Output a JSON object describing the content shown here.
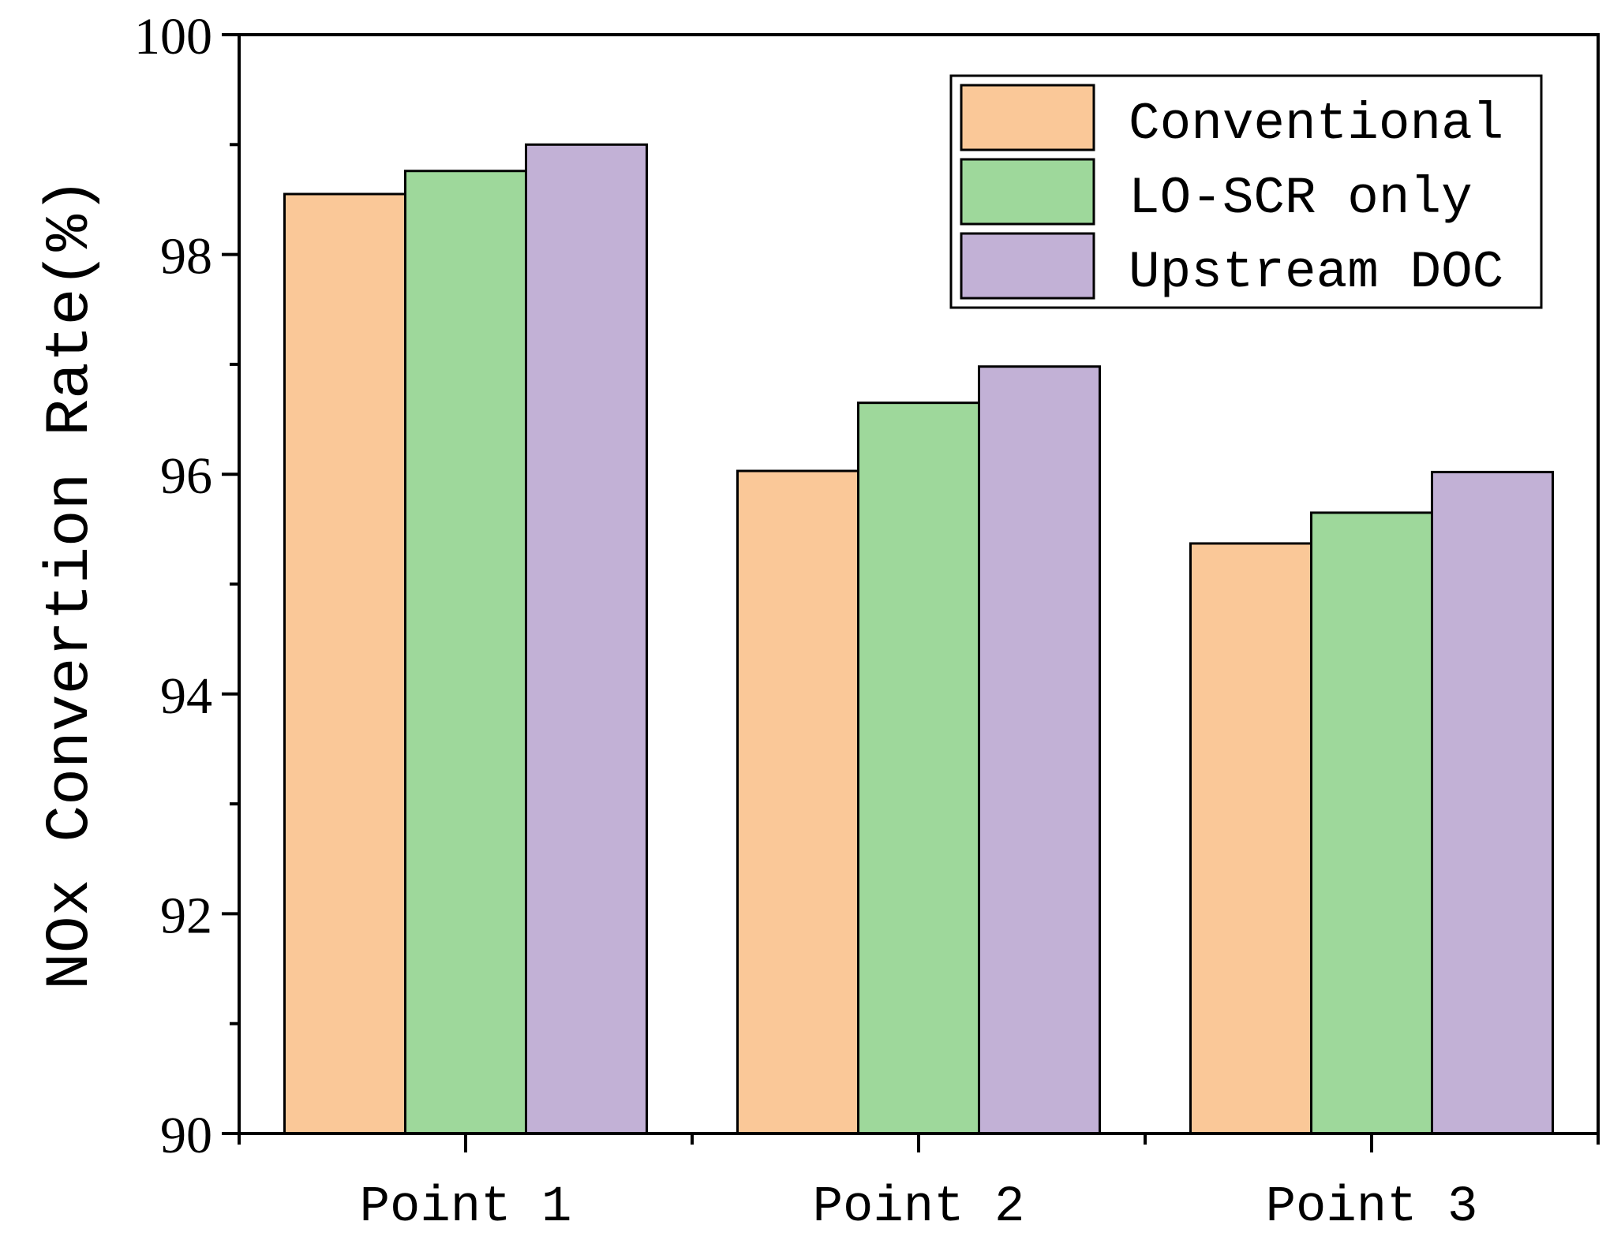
{
  "chart_data": {
    "type": "bar",
    "title": "",
    "xlabel": "",
    "ylabel": "NOx Convertion Rate(%)",
    "categories": [
      "Point 1",
      "Point 2",
      "Point 3"
    ],
    "series": [
      {
        "name": "Conventional",
        "color": "#FAC898",
        "values": [
          98.55,
          96.03,
          95.37
        ]
      },
      {
        "name": "LO-SCR only",
        "color": "#9ED89B",
        "values": [
          98.76,
          96.65,
          95.65
        ]
      },
      {
        "name": "Upstream DOC",
        "color": "#C2B1D6",
        "values": [
          99.0,
          96.98,
          96.02
        ]
      }
    ],
    "ylim": [
      90,
      100
    ],
    "yticks": [
      "90",
      "92",
      "94",
      "96",
      "98",
      "100"
    ],
    "grid": false,
    "legend_position": "top-right"
  }
}
